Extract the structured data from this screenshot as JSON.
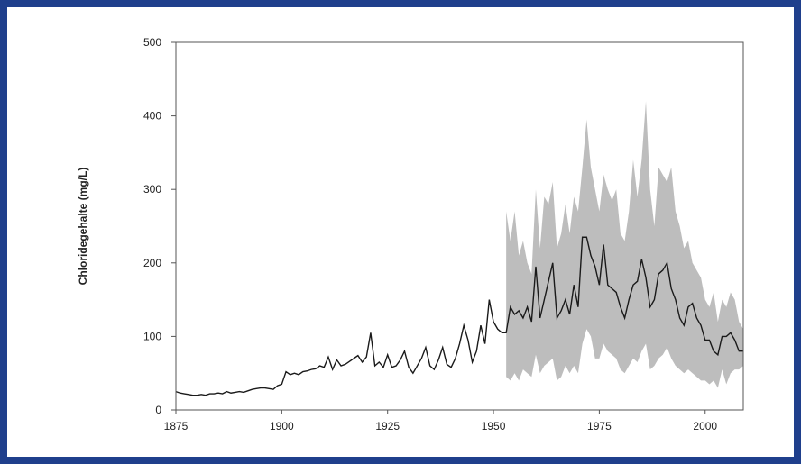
{
  "chart_data": {
    "type": "line",
    "y_label": "Chloridegehalte (mg/L)",
    "x": [
      1875,
      1876,
      1877,
      1878,
      1879,
      1880,
      1881,
      1882,
      1883,
      1884,
      1885,
      1886,
      1887,
      1888,
      1889,
      1890,
      1891,
      1892,
      1893,
      1894,
      1895,
      1896,
      1897,
      1898,
      1899,
      1900,
      1901,
      1902,
      1903,
      1904,
      1905,
      1906,
      1907,
      1908,
      1909,
      1910,
      1911,
      1912,
      1913,
      1914,
      1915,
      1916,
      1917,
      1918,
      1919,
      1920,
      1921,
      1922,
      1923,
      1924,
      1925,
      1926,
      1927,
      1928,
      1929,
      1930,
      1931,
      1932,
      1933,
      1934,
      1935,
      1936,
      1937,
      1938,
      1939,
      1940,
      1941,
      1942,
      1943,
      1944,
      1945,
      1946,
      1947,
      1948,
      1949,
      1950,
      1951,
      1952,
      1953,
      1954,
      1955,
      1956,
      1957,
      1958,
      1959,
      1960,
      1961,
      1962,
      1963,
      1964,
      1965,
      1966,
      1967,
      1968,
      1969,
      1970,
      1971,
      1972,
      1973,
      1974,
      1975,
      1976,
      1977,
      1978,
      1979,
      1980,
      1981,
      1982,
      1983,
      1984,
      1985,
      1986,
      1987,
      1988,
      1989,
      1990,
      1991,
      1992,
      1993,
      1994,
      1995,
      1996,
      1997,
      1998,
      1999,
      2000,
      2001,
      2002,
      2003,
      2004,
      2005,
      2006,
      2007,
      2008,
      2009
    ],
    "series": [
      {
        "color": "#1a1a1a",
        "values": [
          25,
          23,
          22,
          21,
          20,
          20,
          21,
          20,
          22,
          22,
          23,
          22,
          25,
          23,
          24,
          25,
          24,
          26,
          28,
          29,
          30,
          30,
          29,
          28,
          33,
          35,
          52,
          48,
          50,
          48,
          52,
          53,
          55,
          56,
          60,
          58,
          72,
          55,
          68,
          60,
          62,
          66,
          70,
          74,
          65,
          72,
          105,
          60,
          65,
          58,
          75,
          58,
          60,
          68,
          80,
          58,
          50,
          60,
          70,
          85,
          60,
          55,
          68,
          85,
          62,
          58,
          70,
          90,
          115,
          95,
          65,
          80,
          115,
          90,
          150,
          120,
          110,
          105,
          105,
          140,
          130,
          135,
          125,
          140,
          120,
          195,
          125,
          150,
          175,
          200,
          125,
          135,
          150,
          130,
          170,
          140,
          235,
          235,
          210,
          195,
          170,
          225,
          170,
          165,
          160,
          140,
          125,
          150,
          170,
          175,
          205,
          180,
          140,
          150,
          185,
          190,
          200,
          165,
          150,
          125,
          115,
          140,
          145,
          125,
          115,
          95,
          95,
          80,
          75,
          100,
          100,
          105,
          95,
          80,
          80
        ]
      }
    ],
    "band": {
      "color": "#bdbdbd",
      "x": [
        1953,
        1954,
        1955,
        1956,
        1957,
        1958,
        1959,
        1960,
        1961,
        1962,
        1963,
        1964,
        1965,
        1966,
        1967,
        1968,
        1969,
        1970,
        1971,
        1972,
        1973,
        1974,
        1975,
        1976,
        1977,
        1978,
        1979,
        1980,
        1981,
        1982,
        1983,
        1984,
        1985,
        1986,
        1987,
        1988,
        1989,
        1990,
        1991,
        1992,
        1993,
        1994,
        1995,
        1996,
        1997,
        1998,
        1999,
        2000,
        2001,
        2002,
        2003,
        2004,
        2005,
        2006,
        2007,
        2008,
        2009
      ],
      "upper": [
        270,
        230,
        270,
        210,
        230,
        200,
        185,
        300,
        220,
        290,
        280,
        310,
        220,
        240,
        280,
        240,
        290,
        270,
        330,
        395,
        330,
        300,
        270,
        320,
        300,
        285,
        300,
        240,
        230,
        270,
        340,
        290,
        340,
        420,
        300,
        250,
        330,
        320,
        310,
        330,
        270,
        250,
        220,
        230,
        200,
        190,
        180,
        150,
        140,
        160,
        120,
        150,
        140,
        160,
        150,
        120,
        110
      ],
      "lower": [
        45,
        40,
        50,
        40,
        55,
        50,
        45,
        75,
        50,
        60,
        65,
        70,
        40,
        45,
        60,
        50,
        60,
        50,
        90,
        110,
        100,
        70,
        70,
        90,
        80,
        75,
        70,
        55,
        50,
        60,
        70,
        65,
        80,
        90,
        55,
        60,
        70,
        75,
        85,
        70,
        60,
        55,
        50,
        55,
        50,
        45,
        40,
        40,
        35,
        40,
        30,
        55,
        35,
        50,
        55,
        55,
        60
      ]
    },
    "xlim": [
      1875,
      2009
    ],
    "ylim": [
      0,
      500
    ],
    "xticks": [
      1875,
      1900,
      1925,
      1950,
      1975,
      2000
    ],
    "yticks": [
      0,
      100,
      200,
      300,
      400,
      500
    ]
  }
}
